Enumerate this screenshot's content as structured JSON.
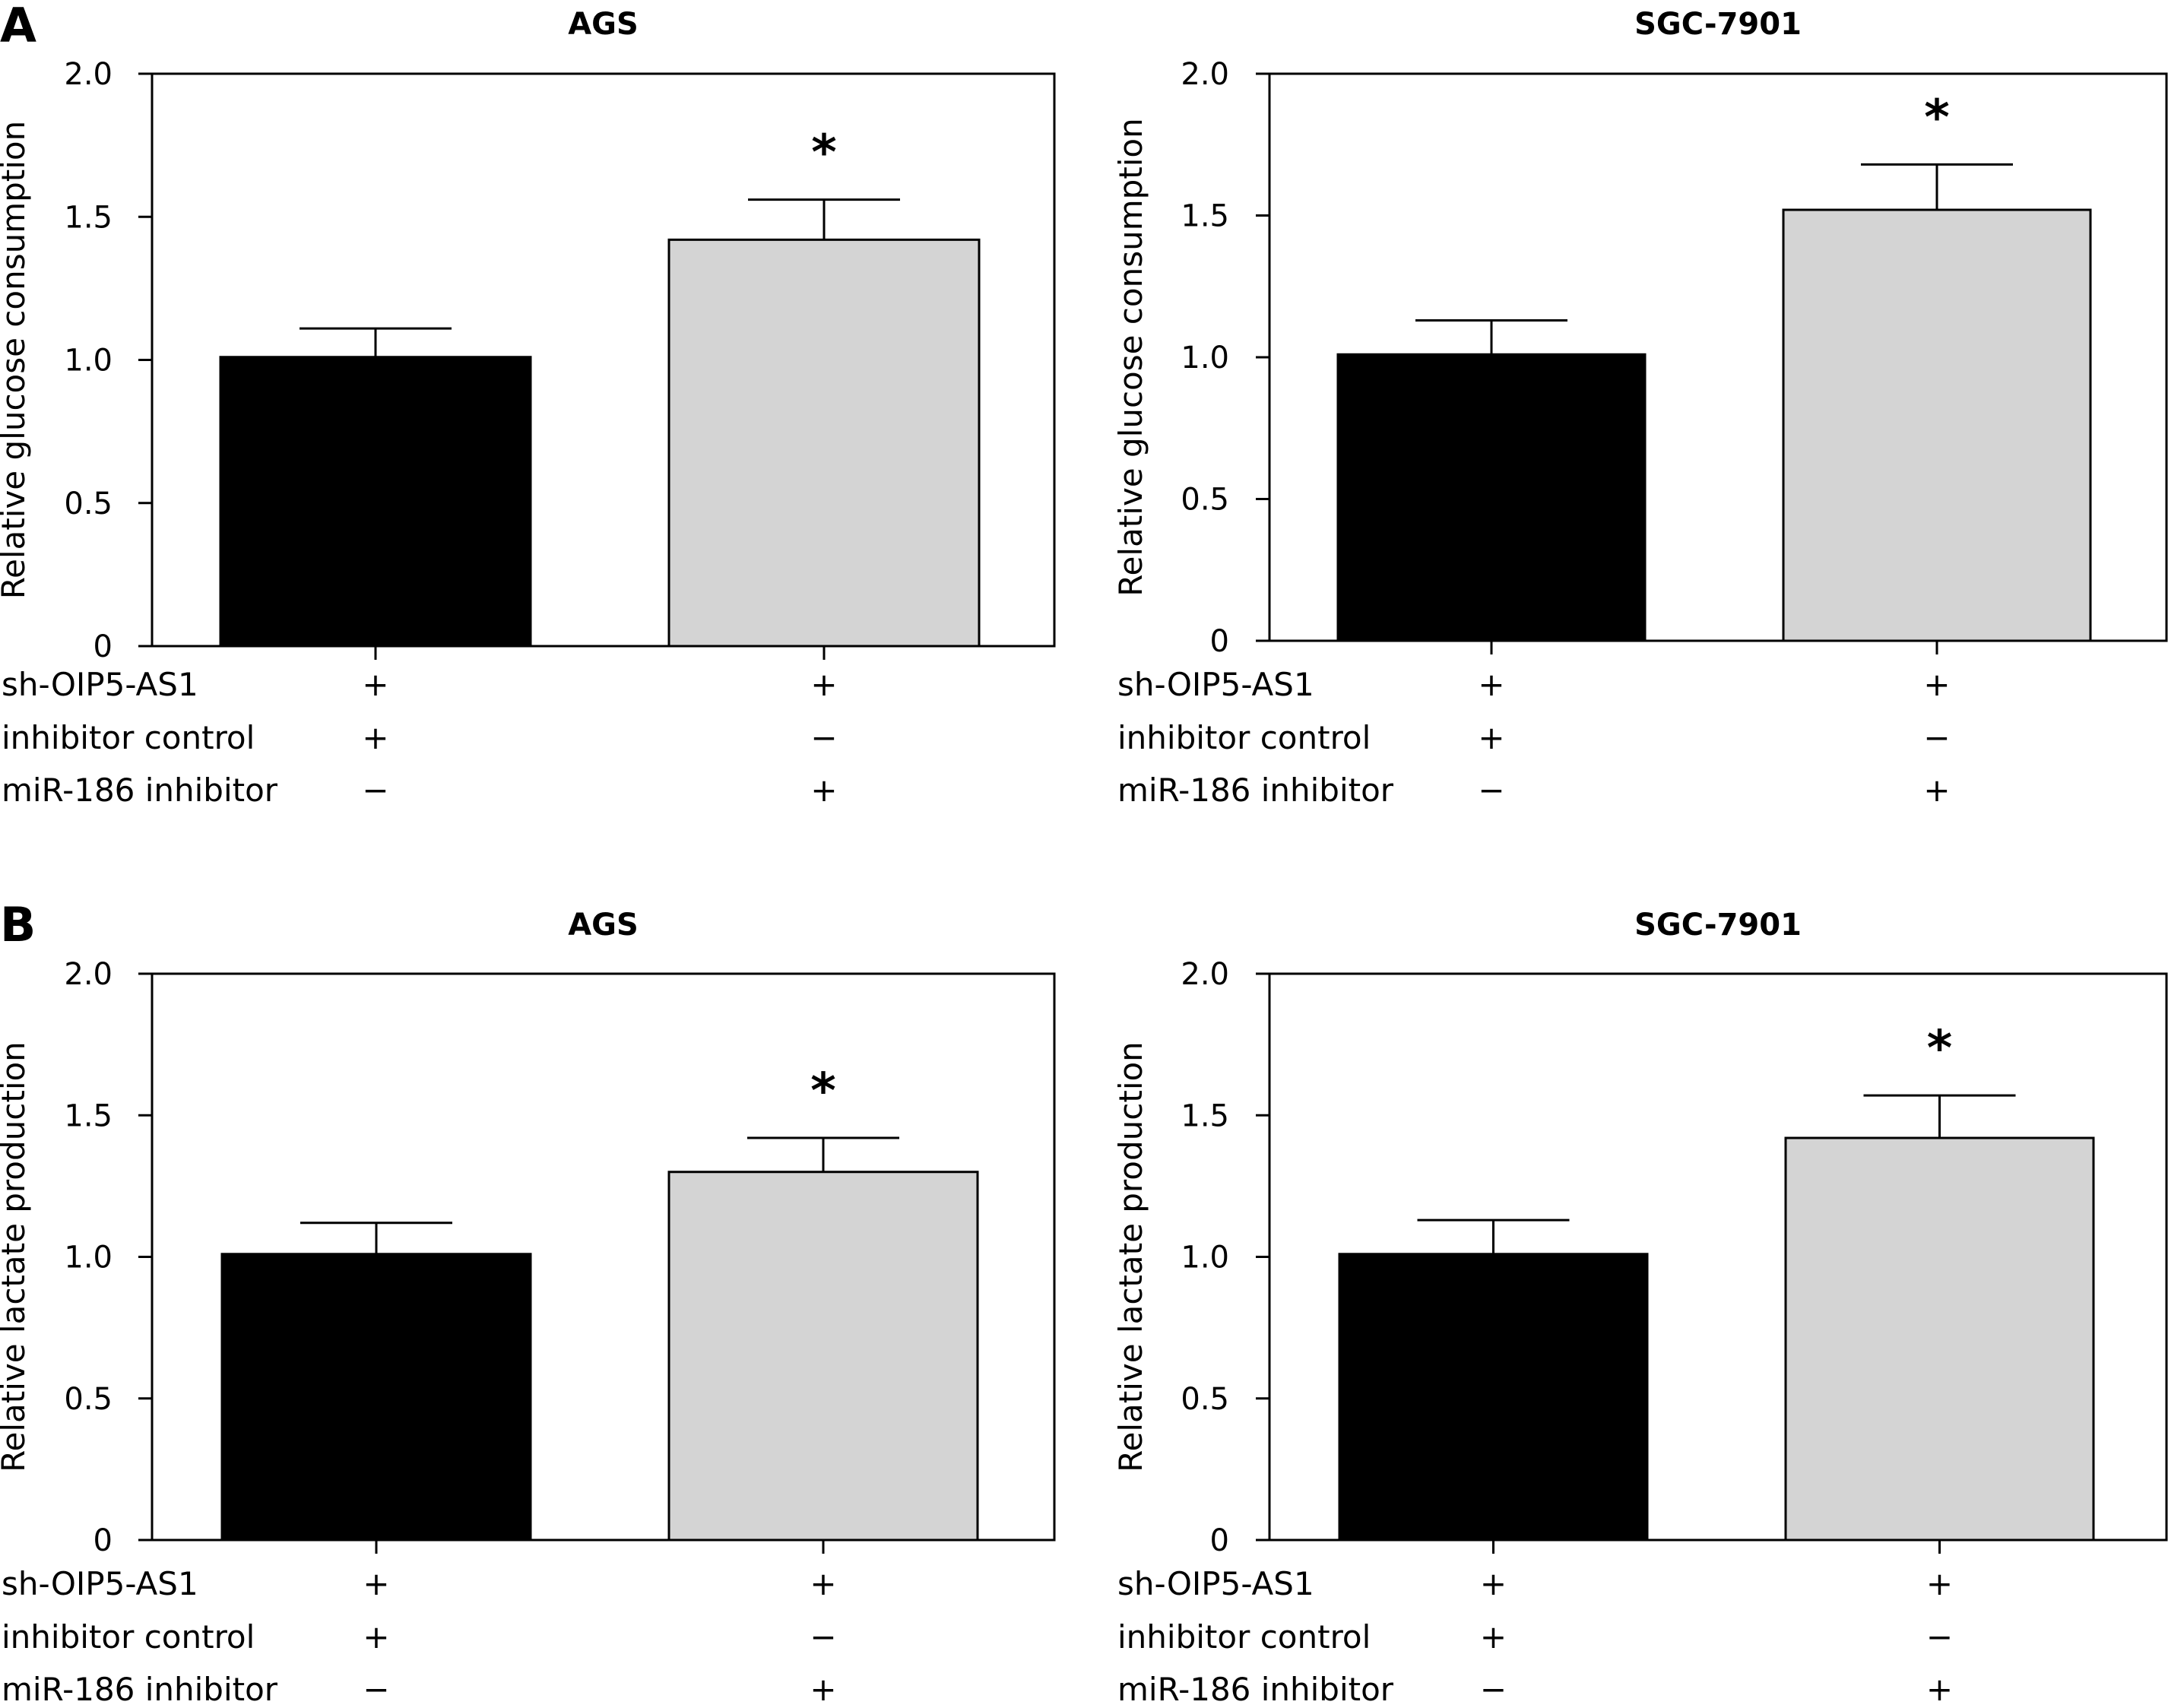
{
  "figure": {
    "panels": [
      {
        "label": "A"
      },
      {
        "label": "B"
      }
    ]
  },
  "chart_data": [
    {
      "type": "bar",
      "panel": "A",
      "title": "AGS",
      "ylabel": "Relative glucose consumption",
      "xlabel": "",
      "ylim": [
        0,
        2.0
      ],
      "yticks": [
        "0",
        "0.5",
        "1.0",
        "1.5",
        "2.0"
      ],
      "conditions": [
        {
          "label": "sh-OIP5-AS1",
          "values": [
            "+",
            "+"
          ]
        },
        {
          "label": "inhibitor control",
          "values": [
            "+",
            "−"
          ]
        },
        {
          "label": "miR-186 inhibitor",
          "values": [
            "−",
            "+"
          ]
        }
      ],
      "bars": [
        {
          "value": 1.01,
          "error": 0.1,
          "color": "#000000",
          "annotation": ""
        },
        {
          "value": 1.42,
          "error": 0.14,
          "color": "#d4d4d4",
          "annotation": "*"
        }
      ]
    },
    {
      "type": "bar",
      "panel": "A",
      "title": "SGC-7901",
      "ylabel": "Relative glucose consumption",
      "xlabel": "",
      "ylim": [
        0,
        2.0
      ],
      "yticks": [
        "0",
        "0.5",
        "1.0",
        "1.5",
        "2.0"
      ],
      "conditions": [
        {
          "label": "sh-OIP5-AS1",
          "values": [
            "+",
            "+"
          ]
        },
        {
          "label": "inhibitor control",
          "values": [
            "+",
            "−"
          ]
        },
        {
          "label": "miR-186 inhibitor",
          "values": [
            "−",
            "+"
          ]
        }
      ],
      "bars": [
        {
          "value": 1.01,
          "error": 0.12,
          "color": "#000000",
          "annotation": ""
        },
        {
          "value": 1.52,
          "error": 0.16,
          "color": "#d4d4d4",
          "annotation": "*"
        }
      ]
    },
    {
      "type": "bar",
      "panel": "B",
      "title": "AGS",
      "ylabel": "Relative lactate production",
      "xlabel": "",
      "ylim": [
        0,
        2.0
      ],
      "yticks": [
        "0",
        "0.5",
        "1.0",
        "1.5",
        "2.0"
      ],
      "conditions": [
        {
          "label": "sh-OIP5-AS1",
          "values": [
            "+",
            "+"
          ]
        },
        {
          "label": "inhibitor control",
          "values": [
            "+",
            "−"
          ]
        },
        {
          "label": "miR-186 inhibitor",
          "values": [
            "−",
            "+"
          ]
        }
      ],
      "bars": [
        {
          "value": 1.01,
          "error": 0.11,
          "color": "#000000",
          "annotation": ""
        },
        {
          "value": 1.3,
          "error": 0.12,
          "color": "#d4d4d4",
          "annotation": "*"
        }
      ]
    },
    {
      "type": "bar",
      "panel": "B",
      "title": "SGC-7901",
      "ylabel": "Relative lactate production",
      "xlabel": "",
      "ylim": [
        0,
        2.0
      ],
      "yticks": [
        "0",
        "0.5",
        "1.0",
        "1.5",
        "2.0"
      ],
      "conditions": [
        {
          "label": "sh-OIP5-AS1",
          "values": [
            "+",
            "+"
          ]
        },
        {
          "label": "inhibitor control",
          "values": [
            "+",
            "−"
          ]
        },
        {
          "label": "miR-186 inhibitor",
          "values": [
            "−",
            "+"
          ]
        }
      ],
      "bars": [
        {
          "value": 1.01,
          "error": 0.12,
          "color": "#000000",
          "annotation": ""
        },
        {
          "value": 1.42,
          "error": 0.15,
          "color": "#d4d4d4",
          "annotation": "*"
        }
      ]
    }
  ]
}
